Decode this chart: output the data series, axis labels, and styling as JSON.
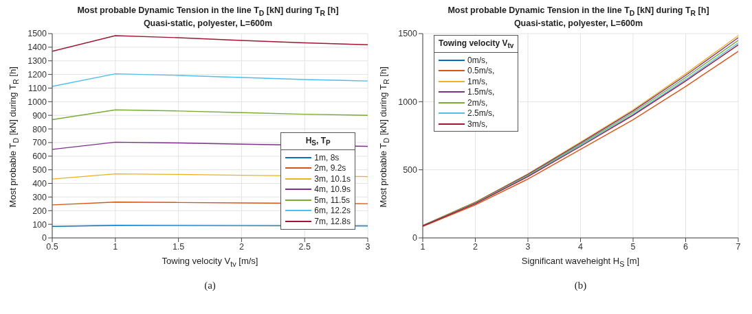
{
  "chart_data": [
    {
      "type": "line",
      "title": "Most probable Dynamic Tension in the line T$_{D}$ [kN] during T$_{R}$ [h]",
      "subtitle": "Quasi-static, polyester, L=600m",
      "xlabel": "Towing velocity V$_{tv}$ [m/s]",
      "ylabel": "Most probable T$_{D}$ [kN] during T$_{R}$ [h]",
      "legend_title": "H$_{S}$, T$_{P}$",
      "legend": "bottom right",
      "grid": true,
      "x": [
        0.5,
        1,
        1.5,
        2,
        2.5,
        3
      ],
      "xlim": [
        0.5,
        3
      ],
      "xticks": [
        0.5,
        1,
        1.5,
        2,
        2.5,
        3
      ],
      "ylim": [
        0,
        1500
      ],
      "yticks": [
        0,
        100,
        200,
        300,
        400,
        500,
        600,
        700,
        800,
        900,
        1000,
        1100,
        1200,
        1300,
        1400,
        1500
      ],
      "series": [
        {
          "name": "1m, 8s",
          "color": "#0072bd",
          "values": [
            84,
            92,
            91,
            90,
            null,
            88
          ]
        },
        {
          "name": "2m, 9.2s",
          "color": "#d95319",
          "values": [
            242,
            263,
            260,
            257,
            null,
            251
          ]
        },
        {
          "name": "3m, 10.1s",
          "color": "#edb120",
          "values": [
            432,
            470,
            466,
            460,
            null,
            450
          ]
        },
        {
          "name": "4m, 10.9s",
          "color": "#7e2f8e",
          "values": [
            650,
            703,
            697,
            688,
            null,
            672
          ]
        },
        {
          "name": "5m, 11.5s",
          "color": "#77ac30",
          "values": [
            868,
            940,
            932,
            920,
            908,
            900
          ]
        },
        {
          "name": "6m, 12.2s",
          "color": "#4dbeee",
          "values": [
            1112,
            1205,
            1193,
            1178,
            1163,
            1152
          ]
        },
        {
          "name": "7m, 12.8s",
          "color": "#a2142f",
          "values": [
            1370,
            1485,
            1470,
            1450,
            1432,
            1418
          ]
        }
      ],
      "annotations": [
        "(a)"
      ]
    },
    {
      "type": "line",
      "title": "Most probable Dynamic Tension in the line T$_{D}$ [kN] during T$_{R}$ [h]",
      "subtitle": "Quasi-static, polyester, L=600m",
      "xlabel": "Significant waveheight H$_{S}$ [m]",
      "ylabel": "Most probable T$_{D}$ [kN] during T$_{R}$ [h]",
      "legend_title": "Towing velocity V$_{tv}$",
      "legend": "top left",
      "grid": true,
      "x": [
        1,
        2,
        3,
        4,
        5,
        6,
        7
      ],
      "xlim": [
        1,
        7
      ],
      "xticks": [
        1,
        2,
        3,
        4,
        5,
        6,
        7
      ],
      "ylim": [
        0,
        1500
      ],
      "yticks": [
        0,
        500,
        1000,
        1500
      ],
      "series": [
        {
          "name": "0m/s,",
          "color": "#0072bd",
          "values": [
            null,
            null,
            null,
            null,
            null,
            null,
            null
          ]
        },
        {
          "name": "0.5m/s,",
          "color": "#d95319",
          "values": [
            84,
            242,
            432,
            650,
            868,
            1112,
            1370
          ]
        },
        {
          "name": "1m/s,",
          "color": "#edb120",
          "values": [
            92,
            263,
            470,
            703,
            940,
            1205,
            1485
          ]
        },
        {
          "name": "1.5m/s,",
          "color": "#7e2f8e",
          "values": [
            91,
            260,
            466,
            697,
            932,
            1193,
            1470
          ]
        },
        {
          "name": "2m/s,",
          "color": "#77ac30",
          "values": [
            90,
            257,
            460,
            688,
            920,
            1178,
            1450
          ]
        },
        {
          "name": "2.5m/s,",
          "color": "#4dbeee",
          "values": [
            89,
            254,
            455,
            680,
            908,
            1163,
            1432
          ]
        },
        {
          "name": "3m/s,",
          "color": "#a2142f",
          "values": [
            88,
            251,
            450,
            672,
            900,
            1152,
            1418
          ]
        }
      ],
      "annotations": [
        "(b)"
      ]
    }
  ]
}
